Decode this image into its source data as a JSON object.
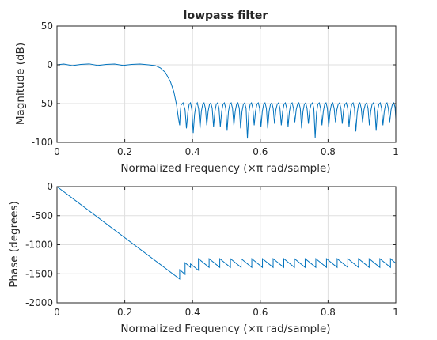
{
  "chart_data": [
    {
      "type": "line",
      "title": "lowpass filter",
      "xlabel": "Normalized Frequency  (×π rad/sample)",
      "ylabel": "Magnitude (dB)",
      "xlim": [
        0,
        1
      ],
      "ylim": [
        -100,
        50
      ],
      "xticks": [
        0,
        0.2,
        0.4,
        0.6,
        0.8,
        1
      ],
      "xtick_labels": [
        "0",
        "0.2",
        "0.4",
        "0.6",
        "0.8",
        "1"
      ],
      "yticks": [
        -100,
        -50,
        0,
        50
      ],
      "ytick_labels": [
        "-100",
        "-50",
        "0",
        "50"
      ],
      "grid": true,
      "series": [
        {
          "color": "#0072bd",
          "x": [
            0,
            0.02,
            0.045,
            0.07,
            0.095,
            0.12,
            0.145,
            0.17,
            0.195,
            0.22,
            0.245,
            0.27,
            0.29,
            0.305,
            0.32,
            0.335,
            0.345,
            0.353,
            0.358,
            0.362,
            0.364,
            0.366,
            0.372,
            0.378,
            0.382,
            0.386,
            0.39,
            0.394,
            0.398,
            0.402,
            0.406,
            0.41,
            0.414,
            0.418,
            0.422,
            0.426,
            0.43,
            0.434,
            0.438,
            0.442,
            0.446,
            0.45,
            0.454,
            0.458,
            0.462,
            0.466,
            0.47,
            0.474,
            0.478,
            0.482,
            0.486,
            0.49,
            0.494,
            0.498,
            0.502,
            0.506,
            0.51,
            0.514,
            0.518,
            0.522,
            0.526,
            0.53,
            0.534,
            0.538,
            0.542,
            0.546,
            0.55,
            0.554,
            0.558,
            0.562,
            0.566,
            0.57,
            0.574,
            0.578,
            0.582,
            0.586,
            0.59,
            0.594,
            0.598,
            0.602,
            0.606,
            0.61,
            0.614,
            0.618,
            0.622,
            0.626,
            0.63,
            0.634,
            0.638,
            0.642,
            0.646,
            0.65,
            0.654,
            0.658,
            0.662,
            0.666,
            0.67,
            0.674,
            0.678,
            0.682,
            0.686,
            0.69,
            0.694,
            0.698,
            0.702,
            0.706,
            0.71,
            0.714,
            0.718,
            0.722,
            0.726,
            0.73,
            0.734,
            0.738,
            0.742,
            0.746,
            0.75,
            0.754,
            0.758,
            0.762,
            0.766,
            0.77,
            0.774,
            0.778,
            0.782,
            0.786,
            0.79,
            0.794,
            0.798,
            0.802,
            0.806,
            0.81,
            0.814,
            0.818,
            0.822,
            0.826,
            0.83,
            0.834,
            0.838,
            0.842,
            0.846,
            0.85,
            0.854,
            0.858,
            0.862,
            0.866,
            0.87,
            0.874,
            0.878,
            0.882,
            0.886,
            0.89,
            0.894,
            0.898,
            0.902,
            0.906,
            0.91,
            0.914,
            0.918,
            0.922,
            0.926,
            0.93,
            0.934,
            0.938,
            0.942,
            0.946,
            0.95,
            0.954,
            0.958,
            0.962,
            0.966,
            0.97,
            0.974,
            0.978,
            0.982,
            0.986,
            0.99,
            0.994,
            0.998,
            1.0
          ],
          "y": [
            0,
            1,
            -1,
            0.5,
            1.2,
            -0.8,
            0.5,
            1,
            -0.8,
            0.5,
            1,
            0,
            -1,
            -4,
            -10,
            -22,
            -35,
            -52,
            -68,
            -78,
            -60,
            -52,
            -49,
            -58,
            -82,
            -62,
            -51,
            -49,
            -58,
            -88,
            -64,
            -52,
            -49,
            -57,
            -82,
            -60,
            -51,
            -49,
            -56,
            -78,
            -60,
            -51,
            -49,
            -56,
            -80,
            -60,
            -51,
            -49,
            -56,
            -80,
            -60,
            -51,
            -49,
            -56,
            -85,
            -60,
            -51,
            -49,
            -56,
            -78,
            -60,
            -51,
            -49,
            -56,
            -82,
            -60,
            -51,
            -49,
            -56,
            -95,
            -62,
            -51,
            -49,
            -56,
            -78,
            -60,
            -51,
            -49,
            -56,
            -80,
            -60,
            -51,
            -49,
            -56,
            -82,
            -60,
            -51,
            -49,
            -56,
            -76,
            -58,
            -51,
            -49,
            -56,
            -78,
            -60,
            -51,
            -49,
            -56,
            -80,
            -60,
            -51,
            -49,
            -56,
            -74,
            -58,
            -51,
            -49,
            -56,
            -82,
            -60,
            -51,
            -49,
            -56,
            -76,
            -58,
            -51,
            -49,
            -56,
            -94,
            -62,
            -51,
            -49,
            -56,
            -78,
            -60,
            -51,
            -49,
            -56,
            -80,
            -60,
            -51,
            -49,
            -56,
            -74,
            -58,
            -51,
            -49,
            -56,
            -76,
            -58,
            -51,
            -49,
            -56,
            -80,
            -60,
            -51,
            -49,
            -56,
            -86,
            -62,
            -51,
            -49,
            -56,
            -74,
            -58,
            -51,
            -49,
            -56,
            -78,
            -60,
            -51,
            -49,
            -56,
            -85,
            -60,
            -51,
            -49,
            -56,
            -78,
            -60,
            -51,
            -49,
            -56,
            -74,
            -58,
            -51,
            -49,
            -55,
            -70
          ]
        }
      ]
    },
    {
      "type": "line",
      "xlabel": "Normalized Frequency  (×π rad/sample)",
      "ylabel": "Phase (degrees)",
      "xlim": [
        0,
        1
      ],
      "ylim": [
        -2000,
        0
      ],
      "xticks": [
        0,
        0.2,
        0.4,
        0.6,
        0.8,
        1
      ],
      "xtick_labels": [
        "0",
        "0.2",
        "0.4",
        "0.6",
        "0.8",
        "1"
      ],
      "yticks": [
        -2000,
        -1500,
        -1000,
        -500,
        0
      ],
      "ytick_labels": [
        "-2000",
        "-1500",
        "-1000",
        "-500",
        "0"
      ],
      "grid": true,
      "series": [
        {
          "color": "#0072bd",
          "x": [
            0,
            0.362,
            0.362,
            0.378,
            0.378,
            0.394,
            0.394,
            0.4174,
            0.4174,
            0.4489,
            0.4489,
            0.4804,
            0.4804,
            0.5119,
            0.5119,
            0.5434,
            0.5434,
            0.5749,
            0.5749,
            0.6064,
            0.6064,
            0.6379,
            0.6379,
            0.6694,
            0.6694,
            0.7009,
            0.7009,
            0.7324,
            0.7324,
            0.7639,
            0.7639,
            0.7954,
            0.7954,
            0.8269,
            0.8269,
            0.8584,
            0.8584,
            0.8899,
            0.8899,
            0.9214,
            0.9214,
            0.9529,
            0.9529,
            0.9844,
            0.9844,
            1.0
          ],
          "y": [
            0,
            -1590,
            -1430,
            -1510,
            -1310,
            -1390,
            -1330,
            -1440,
            -1240,
            -1390,
            -1240,
            -1390,
            -1240,
            -1390,
            -1240,
            -1390,
            -1240,
            -1390,
            -1240,
            -1390,
            -1240,
            -1390,
            -1240,
            -1390,
            -1240,
            -1390,
            -1240,
            -1390,
            -1240,
            -1390,
            -1240,
            -1390,
            -1240,
            -1390,
            -1240,
            -1390,
            -1240,
            -1390,
            -1240,
            -1390,
            -1240,
            -1390,
            -1240,
            -1390,
            -1240,
            -1320
          ]
        }
      ]
    }
  ]
}
